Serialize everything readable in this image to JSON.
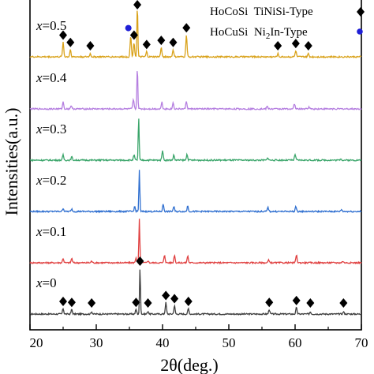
{
  "chart_data": {
    "type": "line",
    "xlabel": "2θ(deg.)",
    "ylabel": "Intensities(a.u.)",
    "xlim": [
      20,
      70
    ],
    "x_ticks": [
      "20",
      "30",
      "40",
      "50",
      "60",
      "70"
    ],
    "legend": [
      {
        "label": "HoCoSi  TiNiSi-Type",
        "marker": "diamond",
        "color": "#000000"
      },
      {
        "label": "HoCuSi  Ni2In-Type",
        "marker": "circle",
        "color": "#1f1fd6"
      }
    ],
    "series": [
      {
        "name": "x=0",
        "label_var": "x",
        "label_val": "=0",
        "color": "#3f3f3f",
        "peaks": [
          {
            "x": 25.0,
            "h": 0.12
          },
          {
            "x": 26.3,
            "h": 0.1
          },
          {
            "x": 29.3,
            "h": 0.05
          },
          {
            "x": 36.0,
            "h": 0.1
          },
          {
            "x": 36.6,
            "h": 1.0
          },
          {
            "x": 37.8,
            "h": 0.06
          },
          {
            "x": 40.5,
            "h": 0.25
          },
          {
            "x": 41.8,
            "h": 0.18
          },
          {
            "x": 43.9,
            "h": 0.12
          },
          {
            "x": 56.1,
            "h": 0.1
          },
          {
            "x": 60.2,
            "h": 0.14
          },
          {
            "x": 62.3,
            "h": 0.05
          },
          {
            "x": 67.3,
            "h": 0.05
          }
        ],
        "diamonds": [
          25.0,
          26.3,
          29.3,
          36.0,
          36.6,
          37.8,
          40.5,
          41.8,
          43.9,
          56.1,
          60.2,
          62.3,
          67.3
        ],
        "circles": []
      },
      {
        "name": "x=0.1",
        "label_var": "x",
        "label_val": "=0.1",
        "color": "#e04040",
        "peaks": [
          {
            "x": 25.0,
            "h": 0.1
          },
          {
            "x": 26.3,
            "h": 0.1
          },
          {
            "x": 29.3,
            "h": 0.04
          },
          {
            "x": 36.0,
            "h": 0.12
          },
          {
            "x": 36.5,
            "h": 1.0
          },
          {
            "x": 37.8,
            "h": 0.05
          },
          {
            "x": 40.3,
            "h": 0.18
          },
          {
            "x": 41.8,
            "h": 0.18
          },
          {
            "x": 43.8,
            "h": 0.16
          },
          {
            "x": 56.0,
            "h": 0.06
          },
          {
            "x": 60.2,
            "h": 0.18
          },
          {
            "x": 67.2,
            "h": 0.04
          }
        ],
        "diamonds": [],
        "circles": []
      },
      {
        "name": "x=0.2",
        "label_var": "x",
        "label_val": "=0.2",
        "color": "#2f6fd0",
        "peaks": [
          {
            "x": 25.0,
            "h": 0.08
          },
          {
            "x": 26.3,
            "h": 0.06
          },
          {
            "x": 35.8,
            "h": 0.12
          },
          {
            "x": 36.5,
            "h": 1.0
          },
          {
            "x": 40.1,
            "h": 0.18
          },
          {
            "x": 41.7,
            "h": 0.12
          },
          {
            "x": 43.8,
            "h": 0.14
          },
          {
            "x": 55.9,
            "h": 0.1
          },
          {
            "x": 60.1,
            "h": 0.12
          },
          {
            "x": 67.0,
            "h": 0.05
          }
        ],
        "diamonds": [],
        "circles": []
      },
      {
        "name": "x=0.3",
        "label_var": "x",
        "label_val": "=0.3",
        "color": "#3aa56a",
        "peaks": [
          {
            "x": 25.0,
            "h": 0.12
          },
          {
            "x": 26.3,
            "h": 0.08
          },
          {
            "x": 35.7,
            "h": 0.12
          },
          {
            "x": 36.4,
            "h": 1.0
          },
          {
            "x": 40.0,
            "h": 0.24
          },
          {
            "x": 41.7,
            "h": 0.12
          },
          {
            "x": 43.7,
            "h": 0.14
          },
          {
            "x": 55.9,
            "h": 0.06
          },
          {
            "x": 60.0,
            "h": 0.14
          },
          {
            "x": 66.9,
            "h": 0.04
          }
        ],
        "diamonds": [],
        "circles": []
      },
      {
        "name": "x=0.4",
        "label_var": "x",
        "label_val": "=0.4",
        "color": "#b57fe0",
        "peaks": [
          {
            "x": 25.0,
            "h": 0.16
          },
          {
            "x": 26.2,
            "h": 0.08
          },
          {
            "x": 35.6,
            "h": 0.22
          },
          {
            "x": 36.2,
            "h": 1.0
          },
          {
            "x": 39.9,
            "h": 0.16
          },
          {
            "x": 41.6,
            "h": 0.14
          },
          {
            "x": 43.6,
            "h": 0.18
          },
          {
            "x": 55.8,
            "h": 0.06
          },
          {
            "x": 59.9,
            "h": 0.12
          },
          {
            "x": 62.1,
            "h": 0.05
          }
        ],
        "diamonds": [],
        "circles": []
      },
      {
        "name": "x=0.5",
        "label_var": "x",
        "label_val": "=0.5",
        "color": "#d9a21a",
        "peaks": [
          {
            "x": 25.0,
            "h": 0.28
          },
          {
            "x": 26.1,
            "h": 0.14
          },
          {
            "x": 29.1,
            "h": 0.06
          },
          {
            "x": 35.2,
            "h": 0.4
          },
          {
            "x": 35.7,
            "h": 0.28
          },
          {
            "x": 36.2,
            "h": 1.0
          },
          {
            "x": 37.6,
            "h": 0.1
          },
          {
            "x": 39.8,
            "h": 0.18
          },
          {
            "x": 41.6,
            "h": 0.14
          },
          {
            "x": 43.6,
            "h": 0.42
          },
          {
            "x": 57.4,
            "h": 0.06
          },
          {
            "x": 60.1,
            "h": 0.12
          },
          {
            "x": 62.0,
            "h": 0.06
          }
        ],
        "diamonds": [
          25.0,
          26.1,
          29.1,
          35.7,
          36.2,
          37.6,
          39.8,
          41.6,
          43.6,
          57.4,
          60.1,
          62.0
        ],
        "circles": [
          35.2
        ]
      }
    ]
  }
}
